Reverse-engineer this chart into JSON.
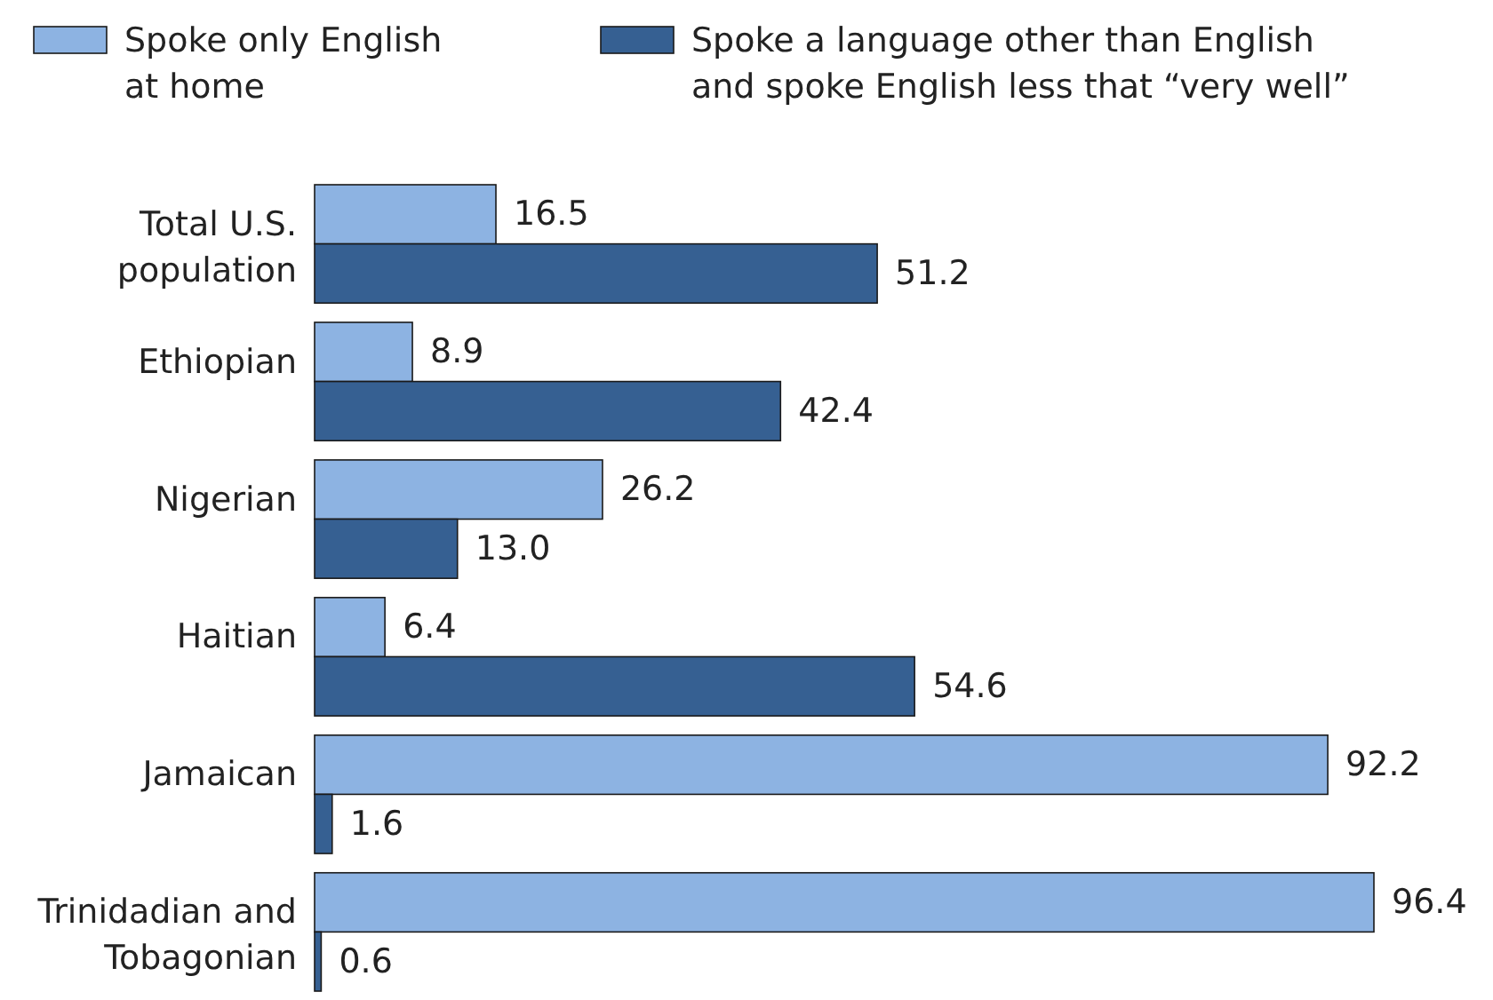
{
  "chart_data": {
    "type": "bar",
    "orientation": "horizontal",
    "legend": "top",
    "tick_labels": "y",
    "categories": [
      "Total U.S. population",
      "Ethiopian",
      "Nigerian",
      "Haitian",
      "Jamaican",
      "Trinidadian and Tobagonian"
    ],
    "series": [
      {
        "name": "Spoke only English at home",
        "color": "#8db3e2",
        "values": [
          16.5,
          8.9,
          26.2,
          6.4,
          92.2,
          96.4
        ],
        "value_labels": [
          "16.5",
          "8.9",
          "26.2",
          "6.4",
          "92.2",
          "96.4"
        ]
      },
      {
        "name": "Spoke a language other than English and spoke English less that “very well”",
        "color": "#366092",
        "values": [
          51.2,
          42.4,
          13.0,
          54.6,
          1.6,
          0.6
        ],
        "value_labels": [
          "51.2",
          "42.4",
          "13.0",
          "54.6",
          "1.6",
          "0.6"
        ]
      }
    ]
  }
}
